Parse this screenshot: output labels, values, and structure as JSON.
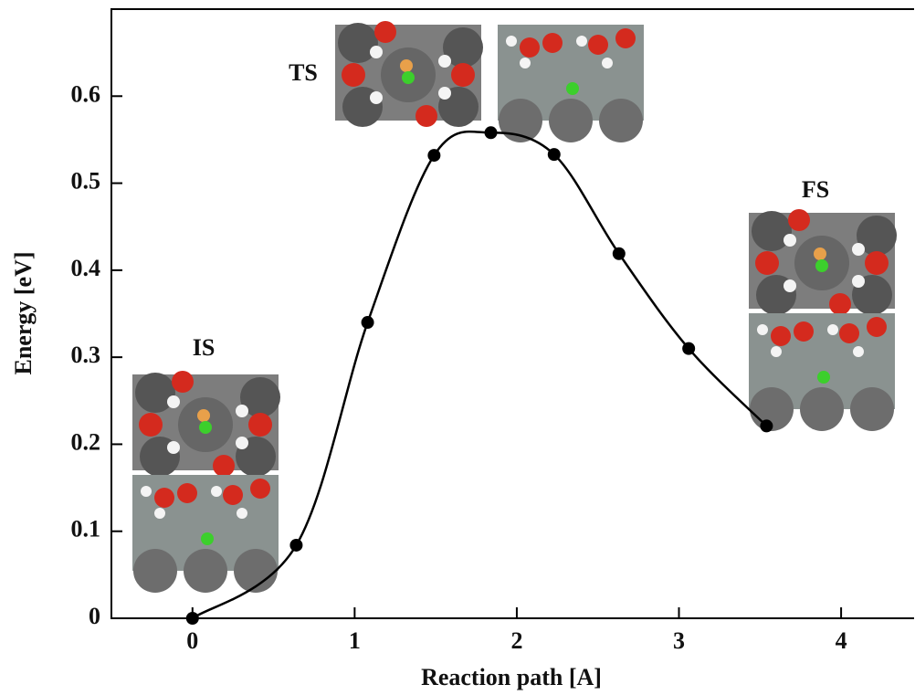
{
  "chart_data": {
    "type": "line",
    "x_label": "Reaction path [A]",
    "y_label": "Energy [eV]",
    "x": [
      0,
      0.64,
      1.08,
      1.49,
      1.84,
      2.23,
      2.63,
      3.06,
      3.54
    ],
    "series": [
      {
        "color": "#000000",
        "values": [
          0,
          0.084,
          0.34,
          0.532,
          0.558,
          0.533,
          0.419,
          0.31,
          0.221
        ]
      }
    ],
    "xlim": [
      -0.5,
      4.45
    ],
    "xticks": [
      0,
      1,
      2,
      3,
      4
    ],
    "ylim": [
      0,
      0.7
    ],
    "yticks": [
      0,
      0.1,
      0.2,
      0.3,
      0.4,
      0.5,
      0.6
    ],
    "annotations": [
      "IS",
      "TS",
      "FS"
    ]
  }
}
